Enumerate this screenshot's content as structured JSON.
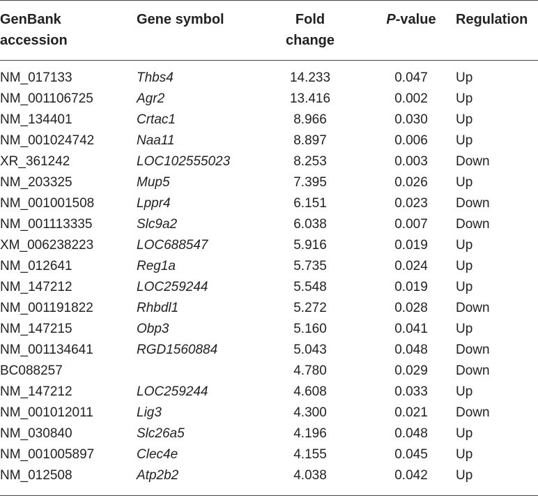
{
  "table": {
    "headers": {
      "accession_line1": "GenBank",
      "accession_line2": "accession",
      "symbol": "Gene symbol",
      "fold_line1": "Fold",
      "fold_line2": "change",
      "pvalue_p": "P",
      "pvalue_rest": "-value",
      "regulation": "Regulation"
    },
    "rows": [
      {
        "accession": "NM_017133",
        "symbol": "Thbs4",
        "fold": "14.233",
        "pvalue": "0.047",
        "regulation": "Up"
      },
      {
        "accession": "NM_001106725",
        "symbol": "Agr2",
        "fold": "13.416",
        "pvalue": "0.002",
        "regulation": "Up"
      },
      {
        "accession": "NM_134401",
        "symbol": "Crtac1",
        "fold": "8.966",
        "pvalue": "0.030",
        "regulation": "Up"
      },
      {
        "accession": "NM_001024742",
        "symbol": "Naa11",
        "fold": "8.897",
        "pvalue": "0.006",
        "regulation": "Up"
      },
      {
        "accession": "XR_361242",
        "symbol": "LOC102555023",
        "fold": "8.253",
        "pvalue": "0.003",
        "regulation": "Down"
      },
      {
        "accession": "NM_203325",
        "symbol": "Mup5",
        "fold": "7.395",
        "pvalue": "0.026",
        "regulation": "Up"
      },
      {
        "accession": "NM_001001508",
        "symbol": "Lppr4",
        "fold": "6.151",
        "pvalue": "0.023",
        "regulation": "Down"
      },
      {
        "accession": "NM_001113335",
        "symbol": "Slc9a2",
        "fold": "6.038",
        "pvalue": "0.007",
        "regulation": "Down"
      },
      {
        "accession": "XM_006238223",
        "symbol": "LOC688547",
        "fold": "5.916",
        "pvalue": "0.019",
        "regulation": "Up"
      },
      {
        "accession": "NM_012641",
        "symbol": "Reg1a",
        "fold": "5.735",
        "pvalue": "0.024",
        "regulation": "Up"
      },
      {
        "accession": "NM_147212",
        "symbol": "LOC259244",
        "fold": "5.548",
        "pvalue": "0.019",
        "regulation": "Up"
      },
      {
        "accession": "NM_001191822",
        "symbol": "Rhbdl1",
        "fold": "5.272",
        "pvalue": "0.028",
        "regulation": "Down"
      },
      {
        "accession": "NM_147215",
        "symbol": "Obp3",
        "fold": "5.160",
        "pvalue": "0.041",
        "regulation": "Up"
      },
      {
        "accession": "NM_001134641",
        "symbol": "RGD1560884",
        "fold": "5.043",
        "pvalue": "0.048",
        "regulation": "Down"
      },
      {
        "accession": "BC088257",
        "symbol": "",
        "fold": "4.780",
        "pvalue": "0.029",
        "regulation": "Down"
      },
      {
        "accession": "NM_147212",
        "symbol": "LOC259244",
        "fold": "4.608",
        "pvalue": "0.033",
        "regulation": "Up"
      },
      {
        "accession": "NM_001012011",
        "symbol": "Lig3",
        "fold": "4.300",
        "pvalue": "0.021",
        "regulation": "Down"
      },
      {
        "accession": "NM_030840",
        "symbol": "Slc26a5",
        "fold": "4.196",
        "pvalue": "0.048",
        "regulation": "Up"
      },
      {
        "accession": "NM_001005897",
        "symbol": "Clec4e",
        "fold": "4.155",
        "pvalue": "0.045",
        "regulation": "Up"
      },
      {
        "accession": "NM_012508",
        "symbol": "Atp2b2",
        "fold": "4.038",
        "pvalue": "0.042",
        "regulation": "Up"
      }
    ]
  }
}
